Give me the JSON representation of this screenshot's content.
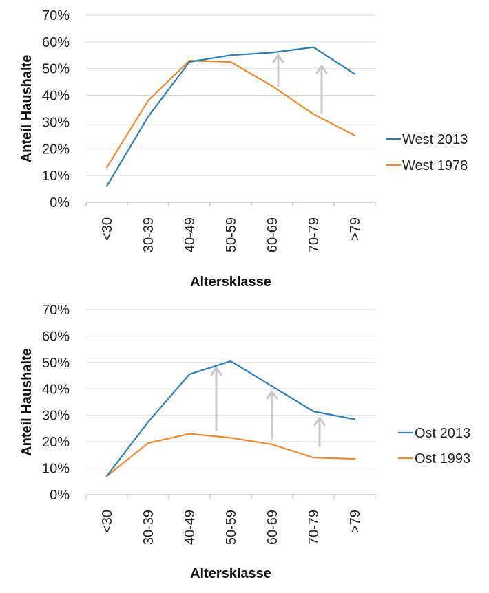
{
  "chart_data": [
    {
      "type": "line",
      "xlabel": "Altersklasse",
      "ylabel": "Anteil Haushalte",
      "categories": [
        "<30",
        "30-39",
        "40-49",
        "50-59",
        "60-69",
        "70-79",
        ">79"
      ],
      "yticks": [
        "0%",
        "10%",
        "20%",
        "30%",
        "40%",
        "50%",
        "60%",
        "70%"
      ],
      "ylim": [
        0,
        70
      ],
      "grid": true,
      "legend_position": "right",
      "series": [
        {
          "name": "West 2013",
          "color": "#2E7EB2",
          "values": [
            6,
            32,
            52.5,
            55,
            56,
            58,
            48
          ]
        },
        {
          "name": "West 1978",
          "color": "#EB8B34",
          "values": [
            13,
            38,
            53,
            52.5,
            43.5,
            33,
            25
          ]
        }
      ],
      "annotations": [
        {
          "type": "arrow",
          "between": [
            "60-69",
            "70-79"
          ],
          "x_fraction": 0.15,
          "from": 43,
          "to": 55,
          "color": "#C8C8C8"
        },
        {
          "type": "arrow",
          "between": [
            "70-79",
            ">79"
          ],
          "x_fraction": 0.2,
          "from": 33,
          "to": 51,
          "color": "#C8C8C8"
        }
      ]
    },
    {
      "type": "line",
      "xlabel": "Altersklasse",
      "ylabel": "Anteil Haushalte",
      "categories": [
        "<30",
        "30-39",
        "40-49",
        "50-59",
        "60-69",
        "70-79",
        ">79"
      ],
      "yticks": [
        "0%",
        "10%",
        "20%",
        "30%",
        "40%",
        "50%",
        "60%",
        "70%"
      ],
      "ylim": [
        0,
        70
      ],
      "grid": true,
      "legend_position": "right",
      "series": [
        {
          "name": "Ost 2013",
          "color": "#2E7EB2",
          "values": [
            7,
            27.5,
            45.5,
            50.5,
            41,
            31.5,
            28.5
          ]
        },
        {
          "name": "Ost 1993",
          "color": "#EB8B34",
          "values": [
            7,
            19.5,
            23,
            21.5,
            19,
            14,
            13.5
          ]
        }
      ],
      "annotations": [
        {
          "type": "arrow",
          "between": [
            "40-49",
            "50-59"
          ],
          "x_fraction": 0.65,
          "from": 24,
          "to": 48,
          "color": "#C8C8C8"
        },
        {
          "type": "arrow",
          "between": [
            "60-69",
            "70-79"
          ],
          "x_fraction": 0.0,
          "from": 21,
          "to": 39,
          "color": "#C8C8C8"
        },
        {
          "type": "arrow",
          "between": [
            "70-79",
            ">79"
          ],
          "x_fraction": 0.15,
          "from": 18,
          "to": 29,
          "color": "#C8C8C8"
        }
      ]
    }
  ]
}
